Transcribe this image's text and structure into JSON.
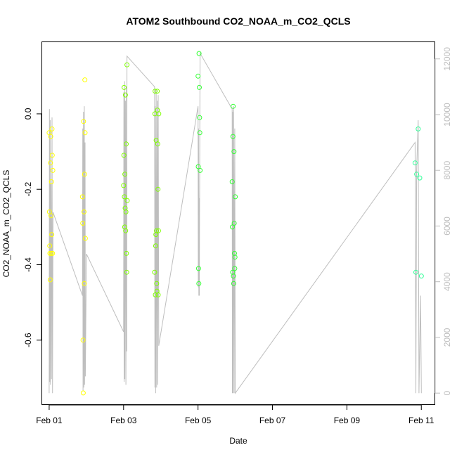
{
  "chart_data": {
    "type": "scatter",
    "title": "ATOM2 Southbound CO2_NOAA_m_CO2_QCLS",
    "xlabel": "Date",
    "ylabel": "CO2_NOAA_m_CO2_QCLS",
    "xlim": [
      "2017-01-31T19:30",
      "2017-02-11T08:30"
    ],
    "ylim": [
      -0.77,
      0.19
    ],
    "y2lim": [
      -400,
      12600
    ],
    "x_ticks": [
      {
        "t": "2017-02-01T00:00",
        "label": "Feb 01"
      },
      {
        "t": "2017-02-03T00:00",
        "label": "Feb 03"
      },
      {
        "t": "2017-02-05T00:00",
        "label": "Feb 05"
      },
      {
        "t": "2017-02-07T00:00",
        "label": "Feb 07"
      },
      {
        "t": "2017-02-09T00:00",
        "label": "Feb 09"
      },
      {
        "t": "2017-02-11T00:00",
        "label": "Feb 11"
      }
    ],
    "y_ticks": [
      {
        "v": 0.0,
        "label": "0.0"
      },
      {
        "v": -0.2,
        "label": "-0.2"
      },
      {
        "v": -0.4,
        "label": "-0.4"
      },
      {
        "v": -0.6,
        "label": "-0.6"
      }
    ],
    "y2_ticks": [
      {
        "v": 0,
        "label": "0"
      },
      {
        "v": 2000,
        "label": "2000"
      },
      {
        "v": 4000,
        "label": "4000"
      },
      {
        "v": 6000,
        "label": "6000"
      },
      {
        "v": 8000,
        "label": "8000"
      },
      {
        "v": 10000,
        "label": "10000"
      },
      {
        "v": 12000,
        "label": "12000"
      }
    ],
    "grid": false,
    "colors": {
      "altitude_line": "#bebebe",
      "axis": "#000000",
      "secondary_axis": "#bebebe"
    },
    "series": [
      {
        "marker": "open-circle",
        "color": "#ffff00",
        "points": [
          {
            "x": "2017-02-01T00:00",
            "y": -0.05
          },
          {
            "x": "2017-02-01T00:10",
            "y": -0.26
          },
          {
            "x": "2017-02-01T00:20",
            "y": -0.35
          },
          {
            "x": "2017-02-01T00:30",
            "y": -0.37
          },
          {
            "x": "2017-02-01T00:40",
            "y": -0.44
          },
          {
            "x": "2017-02-01T00:50",
            "y": -0.13
          },
          {
            "x": "2017-02-01T01:00",
            "y": -0.06
          },
          {
            "x": "2017-02-01T01:10",
            "y": -0.27
          },
          {
            "x": "2017-02-01T01:20",
            "y": -0.37
          },
          {
            "x": "2017-02-01T01:30",
            "y": -0.18
          },
          {
            "x": "2017-02-01T01:40",
            "y": -0.32
          },
          {
            "x": "2017-02-01T01:50",
            "y": -0.04
          },
          {
            "x": "2017-02-01T02:00",
            "y": -0.11
          },
          {
            "x": "2017-02-01T02:10",
            "y": -0.37
          },
          {
            "x": "2017-02-01T02:20",
            "y": -0.15
          },
          {
            "x": "2017-02-01T21:30",
            "y": -0.22
          },
          {
            "x": "2017-02-01T21:40",
            "y": -0.29
          },
          {
            "x": "2017-02-01T21:50",
            "y": -0.6
          },
          {
            "x": "2017-02-01T22:00",
            "y": -0.74
          },
          {
            "x": "2017-02-01T22:10",
            "y": -0.02
          },
          {
            "x": "2017-02-01T22:30",
            "y": -0.26
          },
          {
            "x": "2017-02-01T22:40",
            "y": -0.45
          },
          {
            "x": "2017-02-01T22:50",
            "y": -0.16
          },
          {
            "x": "2017-02-01T23:00",
            "y": 0.09
          },
          {
            "x": "2017-02-01T23:10",
            "y": -0.05
          },
          {
            "x": "2017-02-01T23:20",
            "y": -0.33
          }
        ]
      },
      {
        "marker": "open-circle",
        "color": "#7fff00",
        "points": [
          {
            "x": "2017-02-03T00:00",
            "y": -0.19
          },
          {
            "x": "2017-02-03T00:10",
            "y": -0.11
          },
          {
            "x": "2017-02-03T00:20",
            "y": 0.07
          },
          {
            "x": "2017-02-03T00:30",
            "y": -0.22
          },
          {
            "x": "2017-02-03T00:40",
            "y": -0.3
          },
          {
            "x": "2017-02-03T00:50",
            "y": -0.16
          },
          {
            "x": "2017-02-03T01:00",
            "y": -0.25
          },
          {
            "x": "2017-02-03T01:10",
            "y": 0.05
          },
          {
            "x": "2017-02-03T01:20",
            "y": -0.31
          },
          {
            "x": "2017-02-03T01:30",
            "y": -0.26
          },
          {
            "x": "2017-02-03T01:40",
            "y": -0.08
          },
          {
            "x": "2017-02-03T01:50",
            "y": -0.37
          },
          {
            "x": "2017-02-03T02:00",
            "y": -0.42
          },
          {
            "x": "2017-02-03T02:10",
            "y": 0.13
          },
          {
            "x": "2017-02-03T02:20",
            "y": -0.23
          },
          {
            "x": "2017-02-03T20:00",
            "y": -0.42
          },
          {
            "x": "2017-02-03T20:10",
            "y": 0.0
          },
          {
            "x": "2017-02-03T20:20",
            "y": 0.06
          },
          {
            "x": "2017-02-03T20:30",
            "y": -0.48
          },
          {
            "x": "2017-02-03T20:40",
            "y": -0.35
          },
          {
            "x": "2017-02-03T20:50",
            "y": -0.32
          },
          {
            "x": "2017-02-03T21:00",
            "y": -0.07
          },
          {
            "x": "2017-02-03T21:10",
            "y": -0.31
          },
          {
            "x": "2017-02-03T21:20",
            "y": -0.45
          },
          {
            "x": "2017-02-03T21:30",
            "y": -0.47
          },
          {
            "x": "2017-02-03T21:40",
            "y": 0.06
          },
          {
            "x": "2017-02-03T21:50",
            "y": 0.01
          },
          {
            "x": "2017-02-03T22:00",
            "y": -0.08
          },
          {
            "x": "2017-02-03T22:10",
            "y": -0.2
          },
          {
            "x": "2017-02-03T22:20",
            "y": -0.48
          },
          {
            "x": "2017-02-03T22:30",
            "y": -0.31
          },
          {
            "x": "2017-02-03T22:40",
            "y": 0.0
          }
        ]
      },
      {
        "marker": "open-circle",
        "color": "#33ff33",
        "points": [
          {
            "x": "2017-02-05T00:00",
            "y": 0.1
          },
          {
            "x": "2017-02-05T00:10",
            "y": -0.14
          },
          {
            "x": "2017-02-05T00:20",
            "y": -0.41
          },
          {
            "x": "2017-02-05T00:30",
            "y": -0.45
          },
          {
            "x": "2017-02-05T00:40",
            "y": 0.16
          },
          {
            "x": "2017-02-05T00:50",
            "y": 0.07
          },
          {
            "x": "2017-02-05T01:00",
            "y": -0.01
          },
          {
            "x": "2017-02-05T01:10",
            "y": -0.05
          },
          {
            "x": "2017-02-05T01:20",
            "y": -0.15
          },
          {
            "x": "2017-02-05T22:00",
            "y": -0.18
          },
          {
            "x": "2017-02-05T22:10",
            "y": -0.3
          },
          {
            "x": "2017-02-05T22:20",
            "y": -0.42
          },
          {
            "x": "2017-02-05T22:30",
            "y": -0.06
          },
          {
            "x": "2017-02-05T22:40",
            "y": 0.02
          },
          {
            "x": "2017-02-05T22:50",
            "y": -0.43
          },
          {
            "x": "2017-02-05T23:00",
            "y": -0.45
          },
          {
            "x": "2017-02-05T23:10",
            "y": -0.1
          },
          {
            "x": "2017-02-05T23:20",
            "y": -0.29
          },
          {
            "x": "2017-02-05T23:30",
            "y": -0.37
          },
          {
            "x": "2017-02-05T23:40",
            "y": -0.41
          },
          {
            "x": "2017-02-05T23:50",
            "y": -0.38
          },
          {
            "x": "2017-02-06T00:00",
            "y": -0.22
          }
        ]
      },
      {
        "marker": "open-circle",
        "color": "#33ff99",
        "points": [
          {
            "x": "2017-02-10T20:00",
            "y": -0.13
          },
          {
            "x": "2017-02-10T20:30",
            "y": -0.42
          },
          {
            "x": "2017-02-10T21:00",
            "y": -0.16
          },
          {
            "x": "2017-02-10T22:00",
            "y": -0.04
          },
          {
            "x": "2017-02-10T23:00",
            "y": -0.17
          },
          {
            "x": "2017-02-11T00:00",
            "y": -0.43
          }
        ]
      }
    ],
    "altitude_series": {
      "axis": "right",
      "color": "#bebebe",
      "points": [
        {
          "x": "2017-02-01T00:00",
          "y": 0
        },
        {
          "x": "2017-02-01T00:10",
          "y": 10200
        },
        {
          "x": "2017-02-01T00:20",
          "y": 400
        },
        {
          "x": "2017-02-01T00:40",
          "y": 9800
        },
        {
          "x": "2017-02-01T00:50",
          "y": 300
        },
        {
          "x": "2017-02-01T01:10",
          "y": 7500
        },
        {
          "x": "2017-02-01T01:30",
          "y": 500
        },
        {
          "x": "2017-02-01T01:50",
          "y": 9900
        },
        {
          "x": "2017-02-01T02:10",
          "y": 0
        },
        {
          "x": "2017-02-01T02:30",
          "y": 6500
        },
        {
          "x": "2017-02-01T21:30",
          "y": 3500
        },
        {
          "x": "2017-02-01T21:40",
          "y": 9500
        },
        {
          "x": "2017-02-01T21:50",
          "y": 100
        },
        {
          "x": "2017-02-01T22:10",
          "y": 10100
        },
        {
          "x": "2017-02-01T22:20",
          "y": 200
        },
        {
          "x": "2017-02-01T22:40",
          "y": 10300
        },
        {
          "x": "2017-02-01T22:50",
          "y": 300
        },
        {
          "x": "2017-02-01T23:10",
          "y": 9000
        },
        {
          "x": "2017-02-01T23:20",
          "y": 600
        },
        {
          "x": "2017-02-02T00:00",
          "y": 5000
        },
        {
          "x": "2017-02-03T00:00",
          "y": 2200
        },
        {
          "x": "2017-02-03T00:10",
          "y": 10800
        },
        {
          "x": "2017-02-03T00:20",
          "y": 400
        },
        {
          "x": "2017-02-03T00:40",
          "y": 11200
        },
        {
          "x": "2017-02-03T00:50",
          "y": 500
        },
        {
          "x": "2017-02-03T01:10",
          "y": 10500
        },
        {
          "x": "2017-02-03T01:30",
          "y": 300
        },
        {
          "x": "2017-02-03T01:50",
          "y": 11000
        },
        {
          "x": "2017-02-03T02:00",
          "y": 1500
        },
        {
          "x": "2017-02-03T02:10",
          "y": 12100
        },
        {
          "x": "2017-02-03T20:00",
          "y": 11000
        },
        {
          "x": "2017-02-03T20:10",
          "y": 200
        },
        {
          "x": "2017-02-03T20:20",
          "y": 10300
        },
        {
          "x": "2017-02-03T20:40",
          "y": 0
        },
        {
          "x": "2017-02-03T21:00",
          "y": 10900
        },
        {
          "x": "2017-02-03T21:20",
          "y": 200
        },
        {
          "x": "2017-02-03T21:40",
          "y": 10500
        },
        {
          "x": "2017-02-03T22:00",
          "y": 300
        },
        {
          "x": "2017-02-03T22:20",
          "y": 10700
        },
        {
          "x": "2017-02-03T22:40",
          "y": 1700
        },
        {
          "x": "2017-02-05T00:00",
          "y": 10300
        },
        {
          "x": "2017-02-05T00:10",
          "y": 3800
        },
        {
          "x": "2017-02-05T00:20",
          "y": 9500
        },
        {
          "x": "2017-02-05T00:30",
          "y": 3500
        },
        {
          "x": "2017-02-05T00:40",
          "y": 7000
        },
        {
          "x": "2017-02-05T00:50",
          "y": 3500
        },
        {
          "x": "2017-02-05T01:10",
          "y": 9800
        },
        {
          "x": "2017-02-05T01:20",
          "y": 12200
        },
        {
          "x": "2017-02-05T22:00",
          "y": 10200
        },
        {
          "x": "2017-02-05T22:10",
          "y": 0
        },
        {
          "x": "2017-02-05T22:20",
          "y": 10100
        },
        {
          "x": "2017-02-05T22:40",
          "y": 0
        },
        {
          "x": "2017-02-05T23:00",
          "y": 10300
        },
        {
          "x": "2017-02-05T23:20",
          "y": 0
        },
        {
          "x": "2017-02-05T23:40",
          "y": 9500
        },
        {
          "x": "2017-02-06T00:00",
          "y": 0
        },
        {
          "x": "2017-02-10T20:00",
          "y": 9000
        },
        {
          "x": "2017-02-10T20:30",
          "y": 0
        },
        {
          "x": "2017-02-10T21:00",
          "y": 8000
        },
        {
          "x": "2017-02-10T22:00",
          "y": 9800
        },
        {
          "x": "2017-02-10T22:30",
          "y": 0
        },
        {
          "x": "2017-02-10T23:30",
          "y": 3500
        },
        {
          "x": "2017-02-11T00:00",
          "y": 0
        }
      ]
    }
  }
}
